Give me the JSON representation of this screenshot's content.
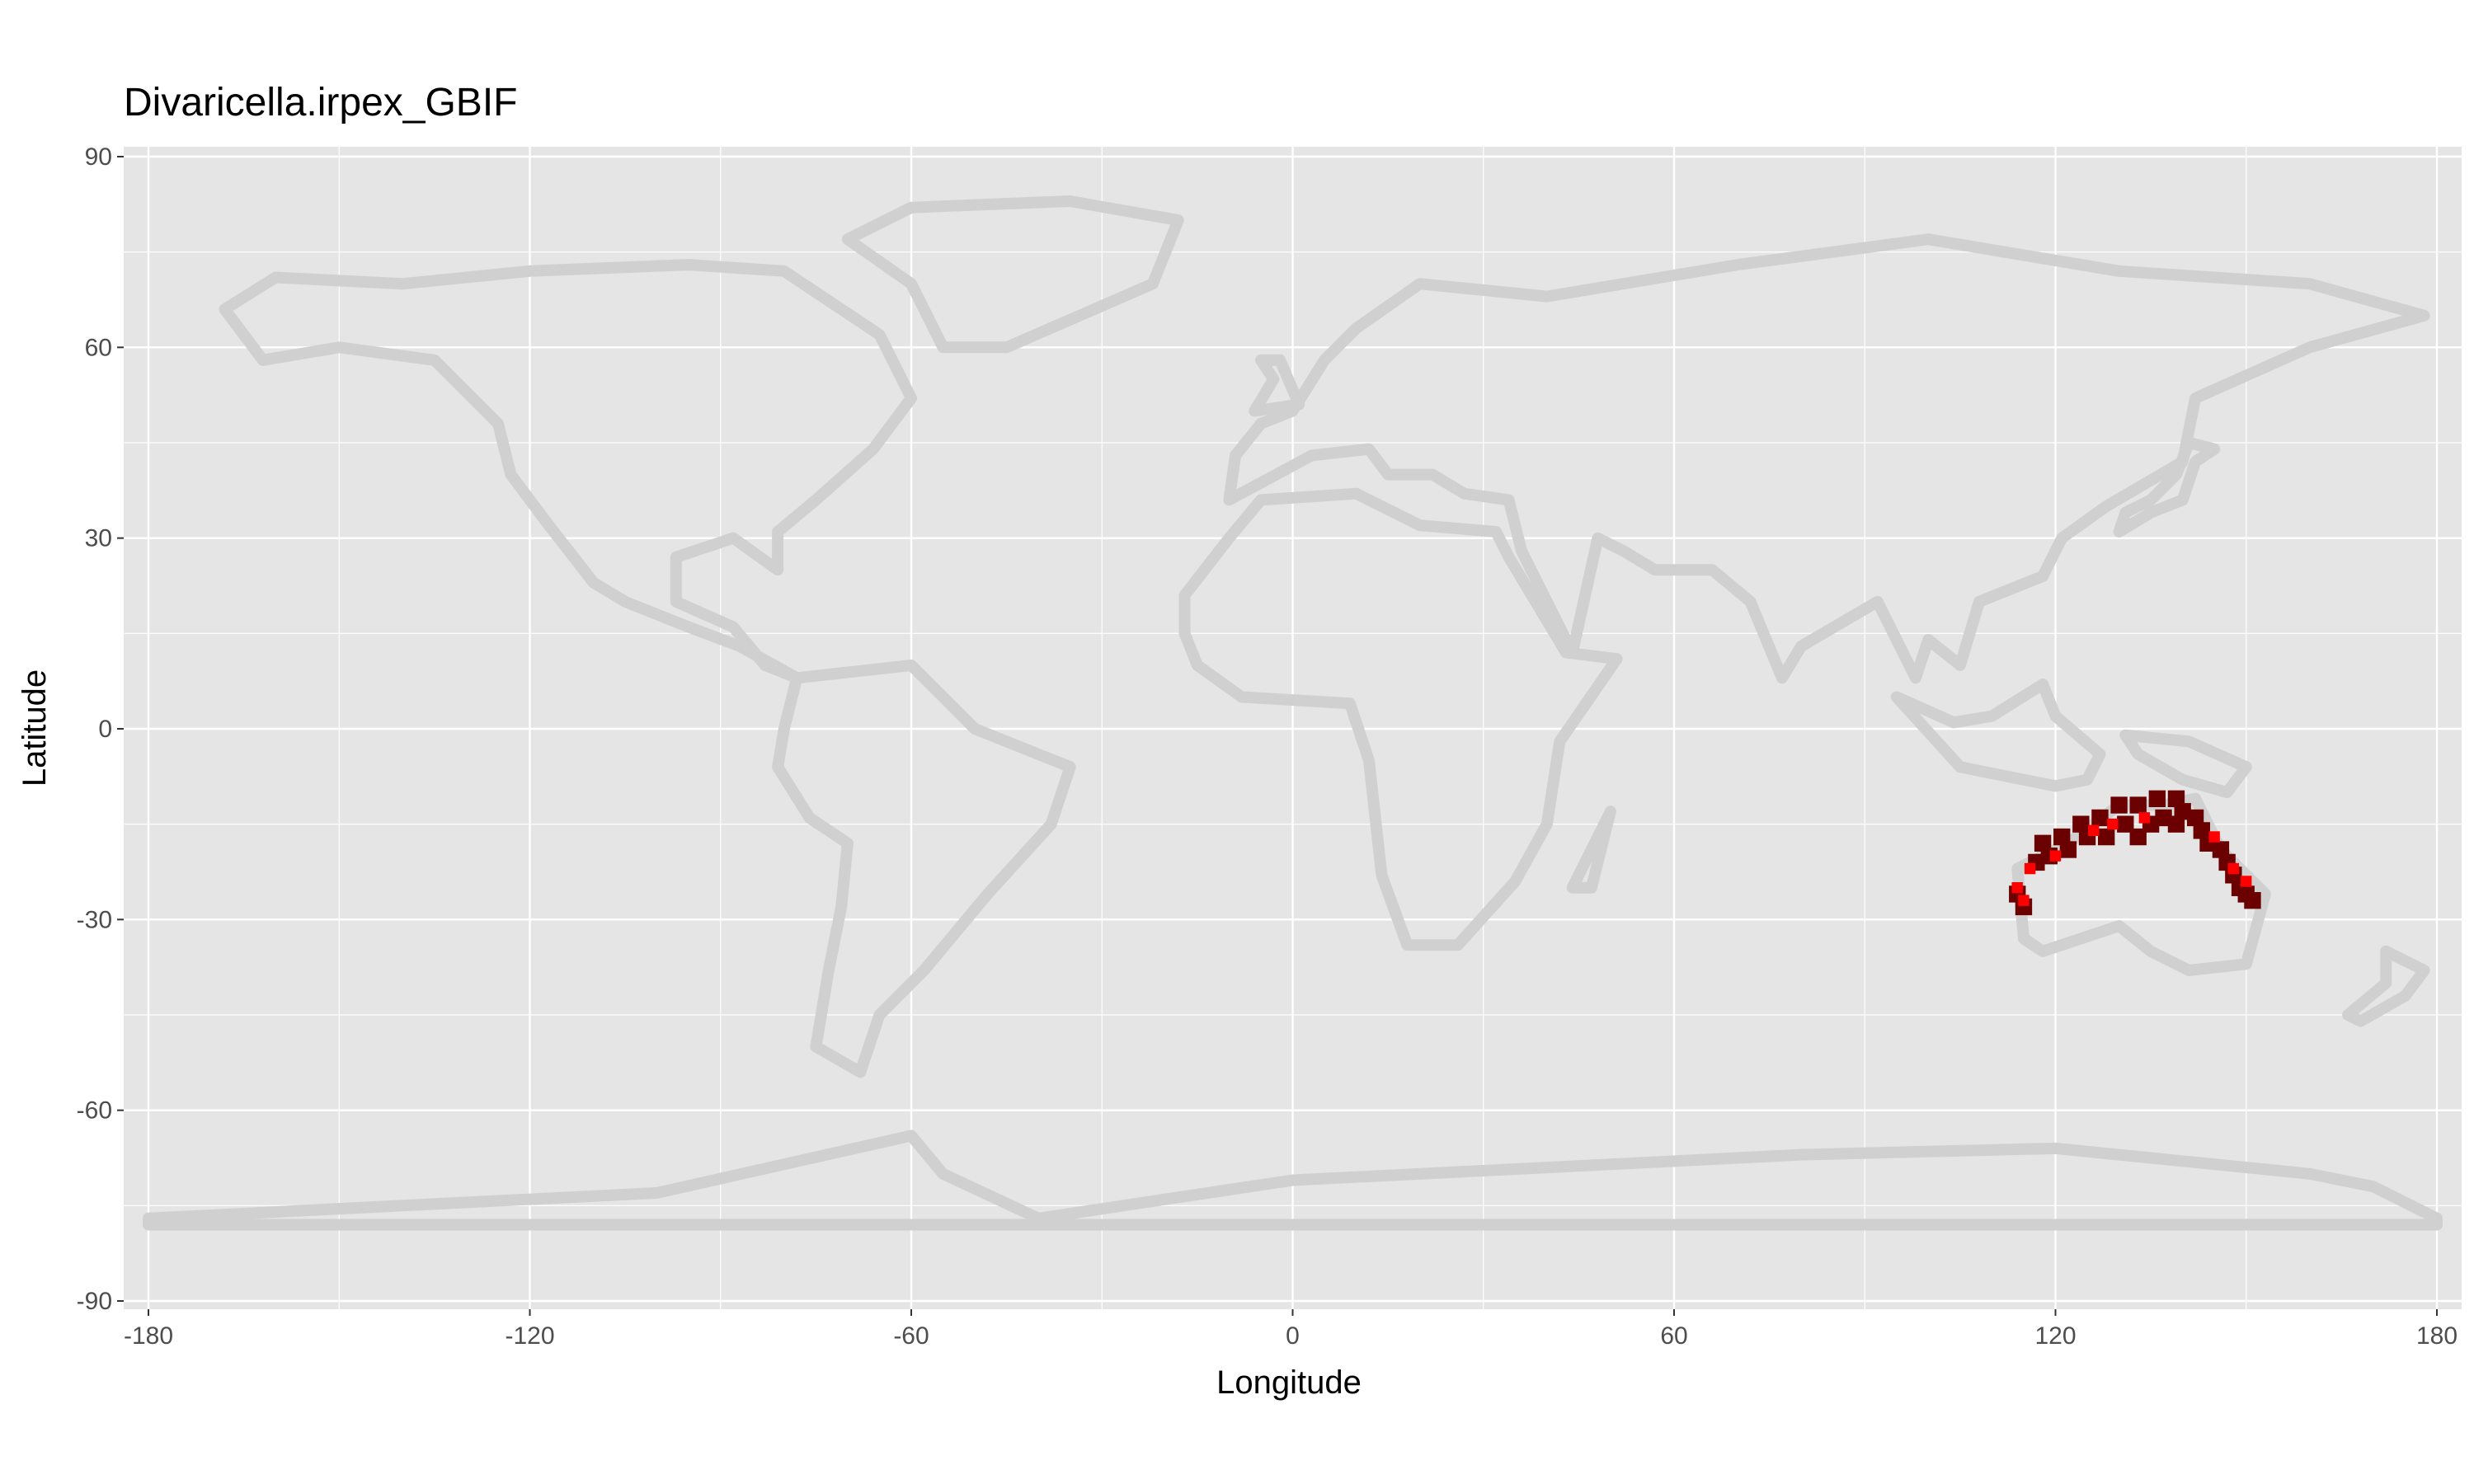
{
  "title": "Divaricella.irpex_GBIF",
  "x_axis": {
    "label": "Longitude",
    "range": [
      -180,
      180
    ],
    "ticks": [
      "-180",
      "-120",
      "-60",
      "0",
      "60",
      "120",
      "180"
    ],
    "tick_values": [
      -180,
      -120,
      -60,
      0,
      60,
      120,
      180
    ]
  },
  "y_axis": {
    "label": "Latitude",
    "range": [
      -90,
      90
    ],
    "ticks": [
      "90",
      "60",
      "30",
      "0",
      "-30",
      "-60",
      "-90"
    ],
    "tick_values": [
      90,
      60,
      30,
      0,
      -30,
      -60,
      -90
    ]
  },
  "colors": {
    "panel": "#e5e5e5",
    "grid": "#ffffff",
    "coast": "#d0d0d0",
    "suitability_high": "#6b0000",
    "suitability_mid": "#ff0000"
  },
  "chart_data": {
    "type": "heatmap",
    "title": "Divaricella.irpex_GBIF",
    "xlabel": "Longitude",
    "ylabel": "Latitude",
    "xlim": [
      -180,
      180
    ],
    "ylim": [
      -90,
      90
    ],
    "grid": true,
    "legend": "none",
    "description_layers": [
      "coastline background",
      "predicted occurrence"
    ],
    "occurrence_region": {
      "high": [
        [
          118,
          -18
        ],
        [
          121,
          -17
        ],
        [
          124,
          -15
        ],
        [
          127,
          -14
        ],
        [
          130,
          -12
        ],
        [
          133,
          -12
        ],
        [
          136,
          -11
        ],
        [
          139,
          -11
        ],
        [
          140,
          -13
        ],
        [
          139,
          -15
        ],
        [
          137,
          -14
        ],
        [
          135,
          -15
        ],
        [
          133,
          -17
        ],
        [
          131,
          -15
        ],
        [
          128,
          -17
        ],
        [
          125,
          -17
        ],
        [
          122,
          -19
        ],
        [
          119,
          -20
        ],
        [
          117,
          -21
        ],
        [
          142,
          -14
        ],
        [
          143,
          -16
        ],
        [
          144,
          -18
        ],
        [
          146,
          -19
        ],
        [
          147,
          -21
        ],
        [
          148,
          -23
        ],
        [
          149,
          -25
        ],
        [
          150,
          -26
        ],
        [
          151,
          -27
        ],
        [
          114,
          -26
        ],
        [
          115,
          -28
        ]
      ],
      "mid": [
        [
          116,
          -22
        ],
        [
          120,
          -20
        ],
        [
          126,
          -16
        ],
        [
          129,
          -15
        ],
        [
          134,
          -14
        ],
        [
          145,
          -17
        ],
        [
          148,
          -22
        ],
        [
          150,
          -24
        ],
        [
          114,
          -25
        ],
        [
          115,
          -27
        ]
      ]
    }
  }
}
